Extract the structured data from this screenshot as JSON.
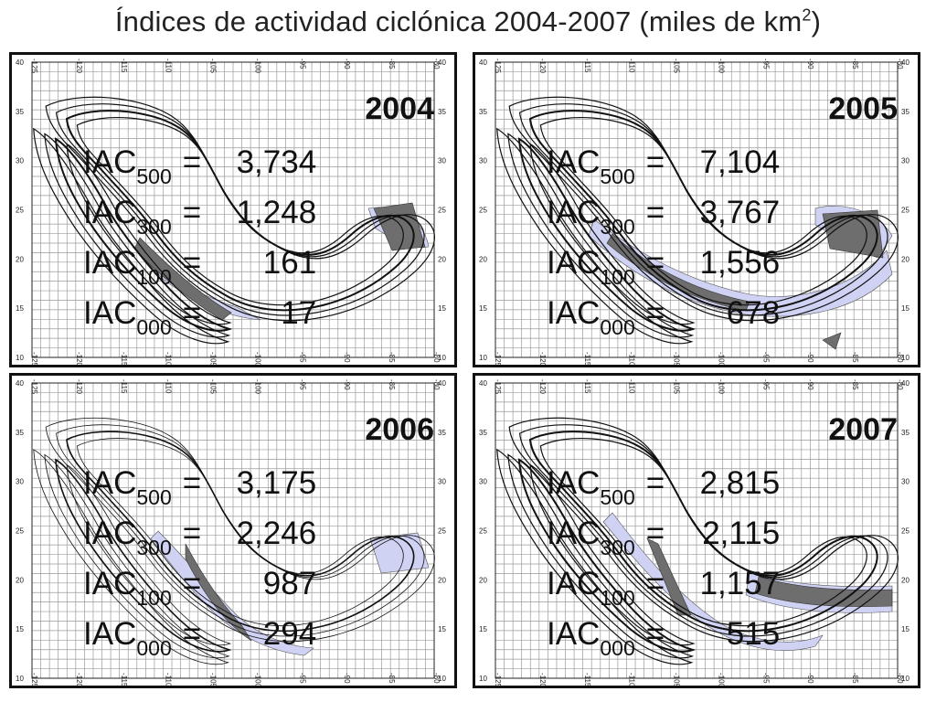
{
  "title": {
    "text": "Índices de actividad ciclónica 2004-2007 (miles de km",
    "sup": "2",
    "close": ")"
  },
  "axes": {
    "lon_top": [
      "-125",
      "-120",
      "-115",
      "-110",
      "-105",
      "-100",
      "-95",
      "-90",
      "-85",
      "-80"
    ],
    "lon_bottom": [
      "-125",
      "-120",
      "-115",
      "-110",
      "-105",
      "-100",
      "-95",
      "-90",
      "-85",
      "-80"
    ],
    "lat": [
      "40",
      "35",
      "30",
      "25",
      "20",
      "15",
      "10"
    ]
  },
  "panels": [
    {
      "year": "2004",
      "indices": [
        {
          "prefix": "IAC",
          "sub": "500",
          "eq": "=",
          "value": "3,734"
        },
        {
          "prefix": "IAC",
          "sub": "300",
          "eq": "=",
          "value": "1,248"
        },
        {
          "prefix": "IAC",
          "sub": "100",
          "eq": "=",
          "value": "161"
        },
        {
          "prefix": "IAC",
          "sub": "000",
          "eq": "=",
          "value": "17"
        }
      ]
    },
    {
      "year": "2005",
      "indices": [
        {
          "prefix": "IAC",
          "sub": "500",
          "eq": "=",
          "value": "7,104"
        },
        {
          "prefix": "IAC",
          "sub": "300",
          "eq": "=",
          "value": "3,767"
        },
        {
          "prefix": "IAC",
          "sub": "100",
          "eq": "=",
          "value": "1,556"
        },
        {
          "prefix": "IAC",
          "sub": "000",
          "eq": "=",
          "value": "678"
        }
      ]
    },
    {
      "year": "2006",
      "indices": [
        {
          "prefix": "IAC",
          "sub": "500",
          "eq": "=",
          "value": "3,175"
        },
        {
          "prefix": "IAC",
          "sub": "300",
          "eq": "=",
          "value": "2,246"
        },
        {
          "prefix": "IAC",
          "sub": "100",
          "eq": "=",
          "value": "987"
        },
        {
          "prefix": "IAC",
          "sub": "000",
          "eq": "=",
          "value": "294"
        }
      ]
    },
    {
      "year": "2007",
      "indices": [
        {
          "prefix": "IAC",
          "sub": "500",
          "eq": "=",
          "value": "2,815"
        },
        {
          "prefix": "IAC",
          "sub": "300",
          "eq": "=",
          "value": "2,115"
        },
        {
          "prefix": "IAC",
          "sub": "100",
          "eq": "=",
          "value": "1,157"
        },
        {
          "prefix": "IAC",
          "sub": "000",
          "eq": "=",
          "value": "515"
        }
      ]
    }
  ],
  "colors": {
    "light_fill": "#cfd2f2",
    "dark_fill": "#6e6e6e",
    "grid": "#9a9a9a",
    "outline": "#111111"
  }
}
